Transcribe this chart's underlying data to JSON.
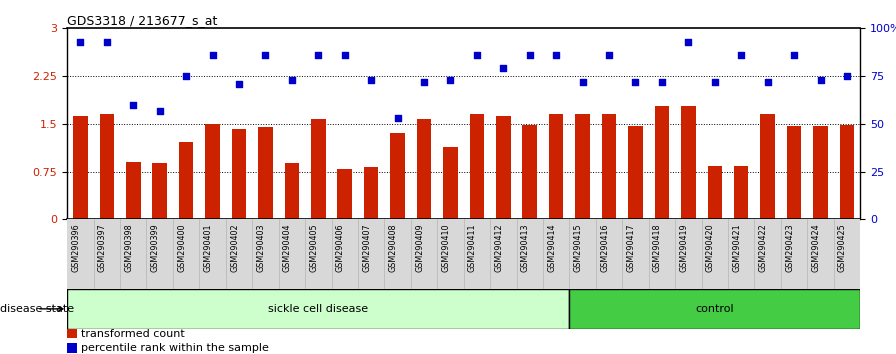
{
  "title": "GDS3318 / 213677_s_at",
  "samples": [
    "GSM290396",
    "GSM290397",
    "GSM290398",
    "GSM290399",
    "GSM290400",
    "GSM290401",
    "GSM290402",
    "GSM290403",
    "GSM290404",
    "GSM290405",
    "GSM290406",
    "GSM290407",
    "GSM290408",
    "GSM290409",
    "GSM290410",
    "GSM290411",
    "GSM290412",
    "GSM290413",
    "GSM290414",
    "GSM290415",
    "GSM290416",
    "GSM290417",
    "GSM290418",
    "GSM290419",
    "GSM290420",
    "GSM290421",
    "GSM290422",
    "GSM290423",
    "GSM290424",
    "GSM290425"
  ],
  "bar_values": [
    1.62,
    1.65,
    0.9,
    0.88,
    1.22,
    1.5,
    1.42,
    1.45,
    0.88,
    1.58,
    0.8,
    0.82,
    1.35,
    1.58,
    1.13,
    1.65,
    1.62,
    1.48,
    1.65,
    1.65,
    1.65,
    1.47,
    1.78,
    1.78,
    0.84,
    0.84,
    1.65,
    1.47,
    1.47,
    1.48
  ],
  "scatter_pct": [
    93,
    93,
    60,
    57,
    75,
    86,
    71,
    86,
    73,
    86,
    86,
    73,
    53,
    72,
    73,
    86,
    79,
    86,
    86,
    72,
    86,
    72,
    72,
    93,
    72,
    86,
    72,
    86,
    73,
    75
  ],
  "sickle_count": 19,
  "control_count": 11,
  "bar_color": "#cc2200",
  "scatter_color": "#0000cc",
  "sickle_color": "#ccffcc",
  "control_color": "#44cc44",
  "sickle_label": "sickle cell disease",
  "control_label": "control",
  "disease_state_label": "disease state",
  "legend_bar_label": "transformed count",
  "legend_scatter_label": "percentile rank within the sample",
  "ylim_left": [
    0,
    3
  ],
  "ylim_right": [
    0,
    100
  ],
  "yticks_left": [
    0,
    0.75,
    1.5,
    2.25,
    3
  ],
  "ytick_left_labels": [
    "0",
    "0.75",
    "1.5",
    "2.25",
    "3"
  ],
  "yticks_right": [
    0,
    25,
    50,
    75,
    100
  ],
  "ytick_right_labels": [
    "0",
    "25",
    "50",
    "75",
    "100%"
  ],
  "hlines": [
    0.75,
    1.5,
    2.25
  ],
  "background_color": "#ffffff",
  "xtick_bg_color": "#d8d8d8"
}
